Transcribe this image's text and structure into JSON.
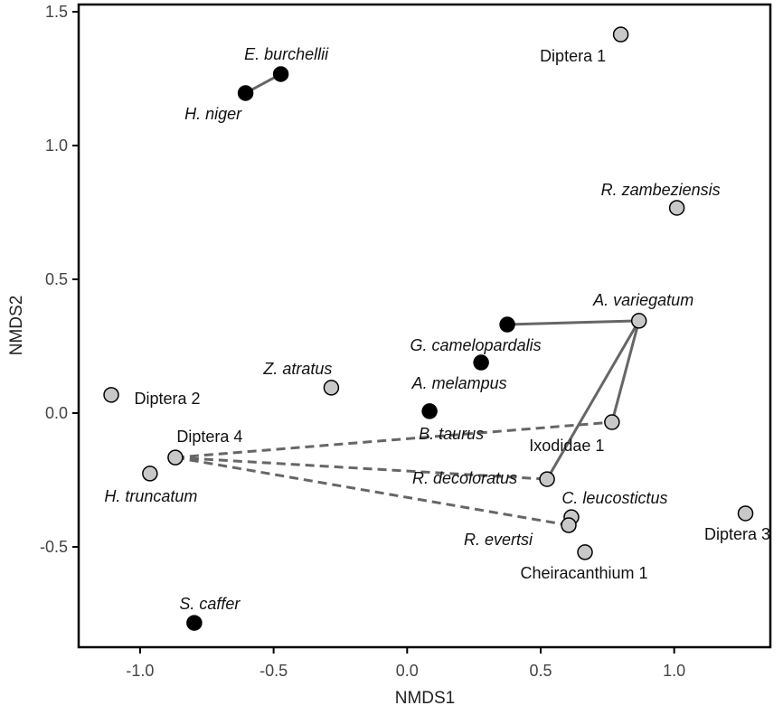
{
  "chart_data": {
    "type": "scatter",
    "title": "",
    "xlabel": "NMDS1",
    "ylabel": "NMDS2",
    "xlim": [
      -1.23,
      1.36
    ],
    "ylim": [
      -0.875,
      1.527
    ],
    "xticks": [
      -1.0,
      -0.5,
      0.0,
      0.5,
      1.0
    ],
    "yticks": [
      -0.5,
      0.0,
      0.5,
      1.0,
      1.5
    ],
    "xtick_labels": [
      "-1.0",
      "-0.5",
      "0.0",
      "0.5",
      "1.0"
    ],
    "ytick_labels": [
      "-0.5",
      "0.0",
      "0.5",
      "1.0",
      "1.5"
    ],
    "grid": false,
    "legend": "none",
    "colors": {
      "host": "#000000",
      "parasite": "#c8c8c8",
      "link": "#666666"
    },
    "points": [
      {
        "label": "Diptera 1",
        "x": 0.8,
        "y": 1.415,
        "group": "parasite",
        "italic": false
      },
      {
        "label": "E. burchellii",
        "x": -0.473,
        "y": 1.267,
        "group": "host",
        "italic": true
      },
      {
        "label": "H. niger",
        "x": -0.605,
        "y": 1.196,
        "group": "host",
        "italic": true
      },
      {
        "label": "R. zambeziensis",
        "x": 1.01,
        "y": 0.767,
        "group": "parasite",
        "italic": true
      },
      {
        "label": "A. variegatum",
        "x": 0.868,
        "y": 0.345,
        "group": "parasite",
        "italic": true
      },
      {
        "label": "G. camelopardalis",
        "x": 0.375,
        "y": 0.331,
        "group": "host",
        "italic": true
      },
      {
        "label": "A. melampus",
        "x": 0.277,
        "y": 0.189,
        "group": "host",
        "italic": true
      },
      {
        "label": "B. taurus",
        "x": 0.084,
        "y": 0.007,
        "group": "host",
        "italic": true
      },
      {
        "label": "Z. atratus",
        "x": -0.284,
        "y": 0.095,
        "group": "parasite",
        "italic": true
      },
      {
        "label": "Diptera 2",
        "x": -1.108,
        "y": 0.068,
        "group": "parasite",
        "italic": false
      },
      {
        "label": "Diptera 4",
        "x": -0.868,
        "y": -0.166,
        "group": "parasite",
        "italic": false
      },
      {
        "label": "H. truncatum",
        "x": -0.963,
        "y": -0.226,
        "group": "parasite",
        "italic": true
      },
      {
        "label": "Ixodidae 1",
        "x": 0.767,
        "y": -0.034,
        "group": "parasite",
        "italic": false
      },
      {
        "label": "R. decoloratus",
        "x": 0.524,
        "y": -0.247,
        "group": "parasite",
        "italic": true
      },
      {
        "label": "C. leucostictus",
        "x": 0.615,
        "y": -0.389,
        "group": "parasite",
        "italic": true
      },
      {
        "label": "R. evertsi",
        "x": 0.605,
        "y": -0.419,
        "group": "parasite",
        "italic": true
      },
      {
        "label": "Cheiracanthium 1",
        "x": 0.666,
        "y": -0.52,
        "group": "parasite",
        "italic": false
      },
      {
        "label": "Diptera 3",
        "x": 1.267,
        "y": -0.375,
        "group": "parasite",
        "italic": false
      },
      {
        "label": "S. caffer",
        "x": -0.797,
        "y": -0.784,
        "group": "host",
        "italic": true
      }
    ],
    "links": [
      {
        "from": "E. burchellii",
        "to": "H. niger",
        "style": "solid"
      },
      {
        "from": "G. camelopardalis",
        "to": "A. variegatum",
        "style": "solid"
      },
      {
        "from": "A. variegatum",
        "to": "Ixodidae 1",
        "style": "solid"
      },
      {
        "from": "A. variegatum",
        "to": "R. decoloratus",
        "style": "solid"
      },
      {
        "from": "Diptera 4",
        "to": "Ixodidae 1",
        "style": "dashed"
      },
      {
        "from": "Diptera 4",
        "to": "R. decoloratus",
        "style": "dashed"
      },
      {
        "from": "Diptera 4",
        "to": "R. evertsi",
        "style": "dashed"
      }
    ]
  }
}
